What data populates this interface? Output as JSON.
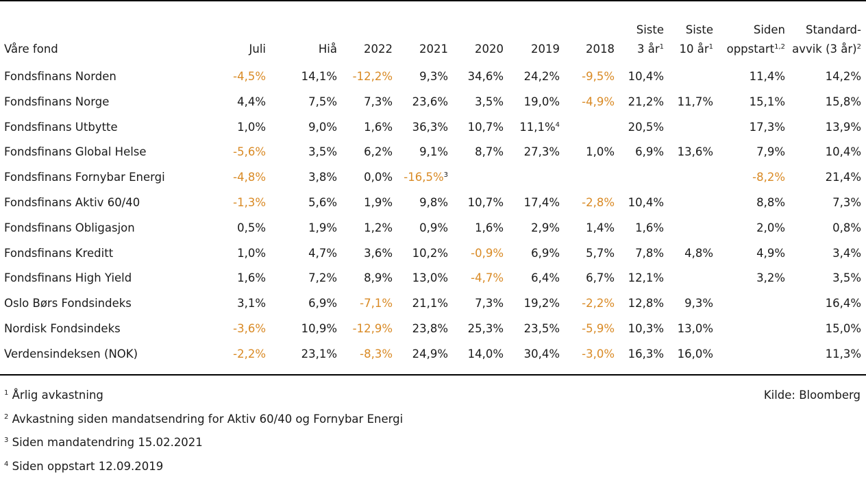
{
  "table": {
    "headers": [
      {
        "l1": "",
        "l2": "Våre fond",
        "sup": ""
      },
      {
        "l1": "",
        "l2": "Juli",
        "sup": ""
      },
      {
        "l1": "",
        "l2": "Hiå",
        "sup": ""
      },
      {
        "l1": "",
        "l2": "2022",
        "sup": ""
      },
      {
        "l1": "",
        "l2": "2021",
        "sup": ""
      },
      {
        "l1": "",
        "l2": "2020",
        "sup": ""
      },
      {
        "l1": "",
        "l2": "2019",
        "sup": ""
      },
      {
        "l1": "",
        "l2": "2018",
        "sup": ""
      },
      {
        "l1": "Siste",
        "l2": "3 år",
        "sup": "1"
      },
      {
        "l1": "Siste",
        "l2": "10 år",
        "sup": "1"
      },
      {
        "l1": "Siden",
        "l2": "oppstart",
        "sup": "1,2"
      },
      {
        "l1": "Standard-",
        "l2": "avvik (3 år)",
        "sup": "2"
      }
    ],
    "rows": [
      {
        "name": "Fondsfinans Norden",
        "cells": [
          [
            "-4,5%",
            ""
          ],
          [
            "14,1%",
            ""
          ],
          [
            "-12,2%",
            ""
          ],
          [
            "9,3%",
            ""
          ],
          [
            "34,6%",
            ""
          ],
          [
            "24,2%",
            ""
          ],
          [
            "-9,5%",
            ""
          ],
          [
            "10,4%",
            ""
          ],
          [
            "",
            ""
          ],
          [
            "11,4%",
            ""
          ],
          [
            "14,2%",
            ""
          ]
        ]
      },
      {
        "name": "Fondsfinans Norge",
        "cells": [
          [
            "4,4%",
            ""
          ],
          [
            "7,5%",
            ""
          ],
          [
            "7,3%",
            ""
          ],
          [
            "23,6%",
            ""
          ],
          [
            "3,5%",
            ""
          ],
          [
            "19,0%",
            ""
          ],
          [
            "-4,9%",
            ""
          ],
          [
            "21,2%",
            ""
          ],
          [
            "11,7%",
            ""
          ],
          [
            "15,1%",
            ""
          ],
          [
            "15,8%",
            ""
          ]
        ]
      },
      {
        "name": "Fondsfinans Utbytte",
        "cells": [
          [
            "1,0%",
            ""
          ],
          [
            "9,0%",
            ""
          ],
          [
            "1,6%",
            ""
          ],
          [
            "36,3%",
            ""
          ],
          [
            "10,7%",
            ""
          ],
          [
            "11,1%",
            "4"
          ],
          [
            "",
            ""
          ],
          [
            "20,5%",
            ""
          ],
          [
            "",
            ""
          ],
          [
            "17,3%",
            ""
          ],
          [
            "13,9%",
            ""
          ]
        ]
      },
      {
        "name": "Fondsfinans Global Helse",
        "cells": [
          [
            "-5,6%",
            ""
          ],
          [
            "3,5%",
            ""
          ],
          [
            "6,2%",
            ""
          ],
          [
            "9,1%",
            ""
          ],
          [
            "8,7%",
            ""
          ],
          [
            "27,3%",
            ""
          ],
          [
            "1,0%",
            ""
          ],
          [
            "6,9%",
            ""
          ],
          [
            "13,6%",
            ""
          ],
          [
            "7,9%",
            ""
          ],
          [
            "10,4%",
            ""
          ]
        ]
      },
      {
        "name": "Fondsfinans Fornybar Energi",
        "cells": [
          [
            "-4,8%",
            ""
          ],
          [
            "3,8%",
            ""
          ],
          [
            "0,0%",
            ""
          ],
          [
            "-16,5%",
            "3"
          ],
          [
            "",
            ""
          ],
          [
            "",
            ""
          ],
          [
            "",
            ""
          ],
          [
            "",
            ""
          ],
          [
            "",
            ""
          ],
          [
            "-8,2%",
            ""
          ],
          [
            "21,4%",
            ""
          ]
        ]
      },
      {
        "name": "Fondsfinans Aktiv 60/40",
        "cells": [
          [
            "-1,3%",
            ""
          ],
          [
            "5,6%",
            ""
          ],
          [
            "1,9%",
            ""
          ],
          [
            "9,8%",
            ""
          ],
          [
            "10,7%",
            ""
          ],
          [
            "17,4%",
            ""
          ],
          [
            "-2,8%",
            ""
          ],
          [
            "10,4%",
            ""
          ],
          [
            "",
            ""
          ],
          [
            "8,8%",
            ""
          ],
          [
            "7,3%",
            ""
          ]
        ]
      },
      {
        "name": "Fondsfinans Obligasjon",
        "cells": [
          [
            "0,5%",
            ""
          ],
          [
            "1,9%",
            ""
          ],
          [
            "1,2%",
            ""
          ],
          [
            "0,9%",
            ""
          ],
          [
            "1,6%",
            ""
          ],
          [
            "2,9%",
            ""
          ],
          [
            "1,4%",
            ""
          ],
          [
            "1,6%",
            ""
          ],
          [
            "",
            ""
          ],
          [
            "2,0%",
            ""
          ],
          [
            "0,8%",
            ""
          ]
        ]
      },
      {
        "name": "Fondsfinans Kreditt",
        "cells": [
          [
            "1,0%",
            ""
          ],
          [
            "4,7%",
            ""
          ],
          [
            "3,6%",
            ""
          ],
          [
            "10,2%",
            ""
          ],
          [
            "-0,9%",
            ""
          ],
          [
            "6,9%",
            ""
          ],
          [
            "5,7%",
            ""
          ],
          [
            "7,8%",
            ""
          ],
          [
            "4,8%",
            ""
          ],
          [
            "4,9%",
            ""
          ],
          [
            "3,4%",
            ""
          ]
        ]
      },
      {
        "name": "Fondsfinans High Yield",
        "cells": [
          [
            "1,6%",
            ""
          ],
          [
            "7,2%",
            ""
          ],
          [
            "8,9%",
            ""
          ],
          [
            "13,0%",
            ""
          ],
          [
            "-4,7%",
            ""
          ],
          [
            "6,4%",
            ""
          ],
          [
            "6,7%",
            ""
          ],
          [
            "12,1%",
            ""
          ],
          [
            "",
            ""
          ],
          [
            "3,2%",
            ""
          ],
          [
            "3,5%",
            ""
          ]
        ]
      },
      {
        "name": "Oslo Børs Fondsindeks",
        "cells": [
          [
            "3,1%",
            ""
          ],
          [
            "6,9%",
            ""
          ],
          [
            "-7,1%",
            ""
          ],
          [
            "21,1%",
            ""
          ],
          [
            "7,3%",
            ""
          ],
          [
            "19,2%",
            ""
          ],
          [
            "-2,2%",
            ""
          ],
          [
            "12,8%",
            ""
          ],
          [
            "9,3%",
            ""
          ],
          [
            "",
            ""
          ],
          [
            "16,4%",
            ""
          ]
        ]
      },
      {
        "name": "Nordisk Fondsindeks",
        "cells": [
          [
            "-3,6%",
            ""
          ],
          [
            "10,9%",
            ""
          ],
          [
            "-12,9%",
            ""
          ],
          [
            "23,8%",
            ""
          ],
          [
            "25,3%",
            ""
          ],
          [
            "23,5%",
            ""
          ],
          [
            "-5,9%",
            ""
          ],
          [
            "10,3%",
            ""
          ],
          [
            "13,0%",
            ""
          ],
          [
            "",
            ""
          ],
          [
            "15,0%",
            ""
          ]
        ]
      },
      {
        "name": "Verdensindeksen (NOK)",
        "cells": [
          [
            "-2,2%",
            ""
          ],
          [
            "23,1%",
            ""
          ],
          [
            "-8,3%",
            ""
          ],
          [
            "24,9%",
            ""
          ],
          [
            "14,0%",
            ""
          ],
          [
            "30,4%",
            ""
          ],
          [
            "-3,0%",
            ""
          ],
          [
            "16,3%",
            ""
          ],
          [
            "16,0%",
            ""
          ],
          [
            "",
            ""
          ],
          [
            "11,3%",
            ""
          ]
        ]
      }
    ]
  },
  "footnotes": [
    {
      "num": "1",
      "text": "Årlig avkastning"
    },
    {
      "num": "2",
      "text": "Avkastning siden mandatsendring for Aktiv 60/40 og Fornybar Energi"
    },
    {
      "num": "3",
      "text": "Siden mandatendring 15.02.2021"
    },
    {
      "num": "4",
      "text": "Siden oppstart 12.09.2019"
    }
  ],
  "source": "Kilde: Bloomberg",
  "colors": {
    "negative": "#d98a25",
    "text": "#1a1a1a",
    "rule": "#000000"
  }
}
